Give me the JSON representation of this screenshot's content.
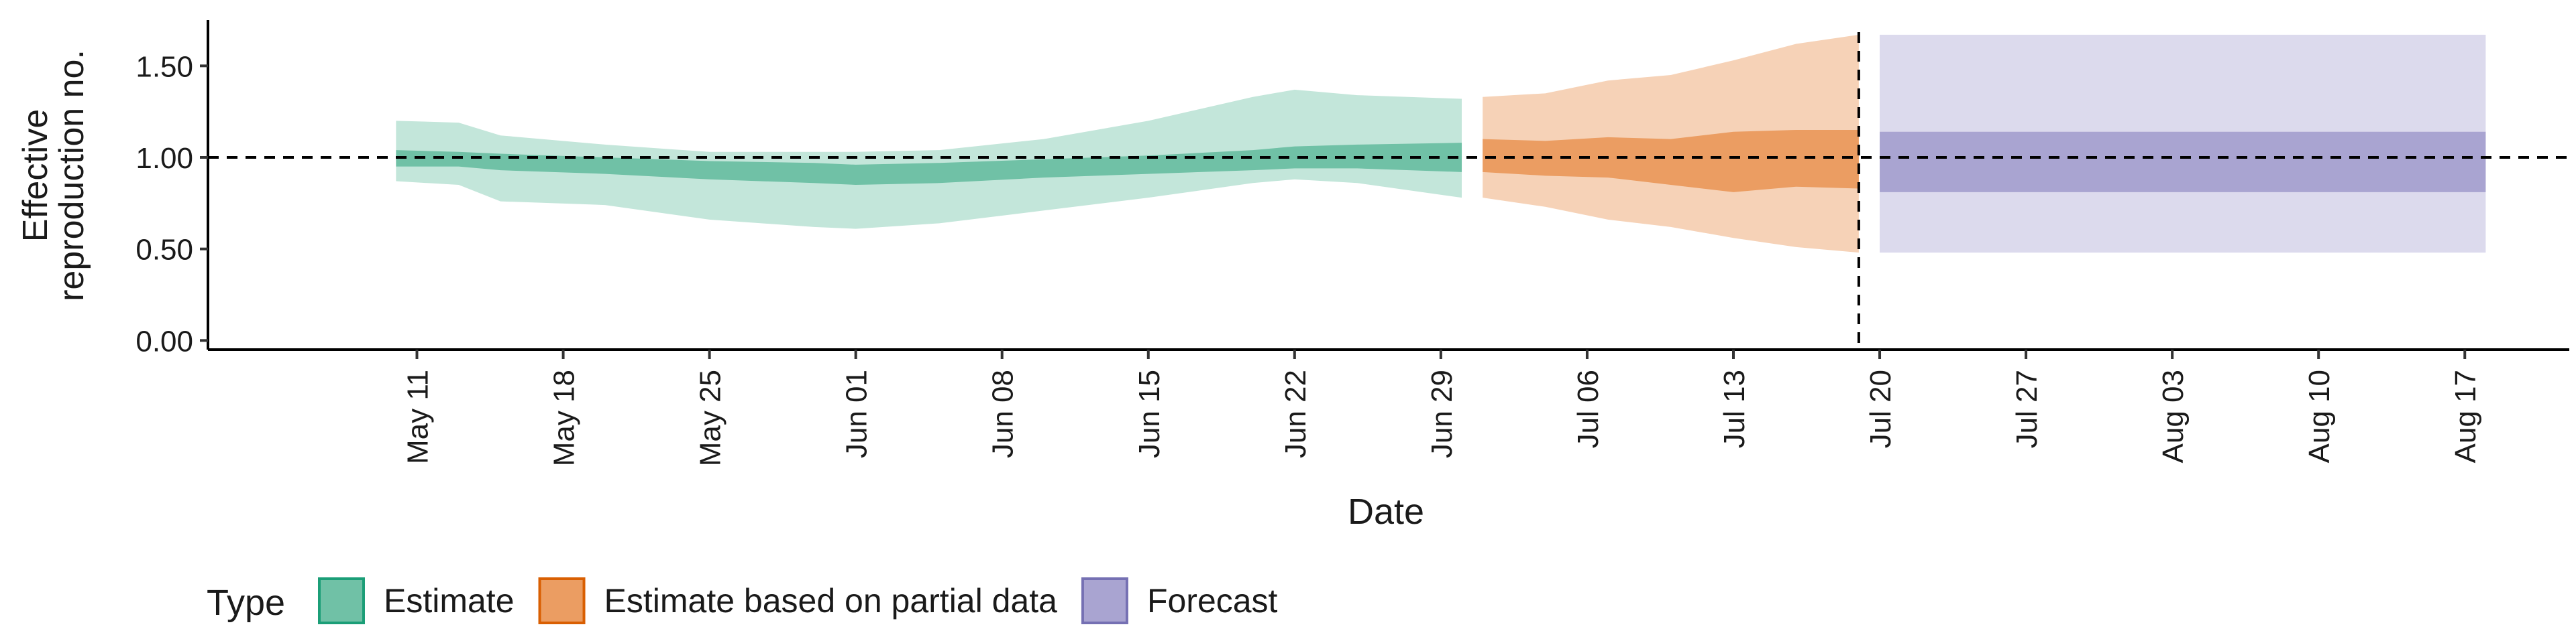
{
  "chart_data": {
    "type": "area",
    "title": "",
    "xlabel": "Date",
    "ylabel_lines": [
      "Effective",
      "reproduction no."
    ],
    "ylim": [
      -0.05,
      1.75
    ],
    "yticks": [
      0.0,
      0.5,
      1.0,
      1.5
    ],
    "ytick_labels": [
      "0.00",
      "0.50",
      "1.00",
      "1.50"
    ],
    "xlim": [
      "2020-05-01",
      "2020-08-22"
    ],
    "xticks": [
      "2020-05-11",
      "2020-05-18",
      "2020-05-25",
      "2020-06-01",
      "2020-06-08",
      "2020-06-15",
      "2020-06-22",
      "2020-06-29",
      "2020-07-06",
      "2020-07-13",
      "2020-07-20",
      "2020-07-27",
      "2020-08-03",
      "2020-08-10",
      "2020-08-17"
    ],
    "xtick_labels": [
      "May 11",
      "May 18",
      "May 25",
      "Jun 01",
      "Jun 08",
      "Jun 15",
      "Jun 22",
      "Jun 29",
      "Jul 06",
      "Jul 13",
      "Jul 20",
      "Jul 27",
      "Aug 03",
      "Aug 10",
      "Aug 17"
    ],
    "reference_line_y": 1.0,
    "vertical_line_x": "2020-07-19",
    "legend": {
      "title": "Type",
      "position": "bottom-left",
      "items": [
        {
          "label": "Estimate",
          "fill": "#70c1a6",
          "stroke": "#1b9e77"
        },
        {
          "label": "Estimate based on partial data",
          "fill": "#eb9d62",
          "stroke": "#d95f02"
        },
        {
          "label": "Forecast",
          "fill": "#a9a4d1",
          "stroke": "#7570b3"
        }
      ]
    },
    "series": [
      {
        "name": "Estimate",
        "color": "#1b9e77",
        "outer_color": "#c3e6da",
        "inner_color": "#70c1a6",
        "points": [
          {
            "x": "2020-05-10",
            "lo90": 0.87,
            "lo50": 0.95,
            "hi50": 1.04,
            "hi90": 1.2
          },
          {
            "x": "2020-05-13",
            "lo90": 0.85,
            "lo50": 0.95,
            "hi50": 1.03,
            "hi90": 1.19
          },
          {
            "x": "2020-05-15",
            "lo90": 0.76,
            "lo50": 0.93,
            "hi50": 1.02,
            "hi90": 1.12
          },
          {
            "x": "2020-05-20",
            "lo90": 0.74,
            "lo50": 0.91,
            "hi50": 1.0,
            "hi90": 1.07
          },
          {
            "x": "2020-05-25",
            "lo90": 0.66,
            "lo50": 0.88,
            "hi50": 0.98,
            "hi90": 1.03
          },
          {
            "x": "2020-05-30",
            "lo90": 0.62,
            "lo50": 0.86,
            "hi50": 0.97,
            "hi90": 1.03
          },
          {
            "x": "2020-06-01",
            "lo90": 0.61,
            "lo50": 0.85,
            "hi50": 0.96,
            "hi90": 1.03
          },
          {
            "x": "2020-06-05",
            "lo90": 0.64,
            "lo50": 0.86,
            "hi50": 0.97,
            "hi90": 1.04
          },
          {
            "x": "2020-06-10",
            "lo90": 0.71,
            "lo50": 0.89,
            "hi50": 0.99,
            "hi90": 1.1
          },
          {
            "x": "2020-06-15",
            "lo90": 0.78,
            "lo50": 0.91,
            "hi50": 1.01,
            "hi90": 1.2
          },
          {
            "x": "2020-06-20",
            "lo90": 0.86,
            "lo50": 0.93,
            "hi50": 1.04,
            "hi90": 1.33
          },
          {
            "x": "2020-06-22",
            "lo90": 0.88,
            "lo50": 0.94,
            "hi50": 1.06,
            "hi90": 1.37
          },
          {
            "x": "2020-06-25",
            "lo90": 0.86,
            "lo50": 0.94,
            "hi50": 1.07,
            "hi90": 1.34
          },
          {
            "x": "2020-06-30",
            "lo90": 0.78,
            "lo50": 0.92,
            "hi50": 1.08,
            "hi90": 1.32
          }
        ]
      },
      {
        "name": "Estimate based on partial data",
        "color": "#d95f02",
        "outer_color": "#f6d2b7",
        "inner_color": "#eb9d62",
        "points": [
          {
            "x": "2020-07-01",
            "lo90": 0.78,
            "lo50": 0.92,
            "hi50": 1.1,
            "hi90": 1.33
          },
          {
            "x": "2020-07-04",
            "lo90": 0.73,
            "lo50": 0.9,
            "hi50": 1.09,
            "hi90": 1.35
          },
          {
            "x": "2020-07-07",
            "lo90": 0.66,
            "lo50": 0.89,
            "hi50": 1.11,
            "hi90": 1.42
          },
          {
            "x": "2020-07-10",
            "lo90": 0.62,
            "lo50": 0.85,
            "hi50": 1.1,
            "hi90": 1.45
          },
          {
            "x": "2020-07-13",
            "lo90": 0.56,
            "lo50": 0.81,
            "hi50": 1.14,
            "hi90": 1.53
          },
          {
            "x": "2020-07-16",
            "lo90": 0.51,
            "lo50": 0.84,
            "hi50": 1.15,
            "hi90": 1.62
          },
          {
            "x": "2020-07-19",
            "lo90": 0.48,
            "lo50": 0.83,
            "hi50": 1.15,
            "hi90": 1.67
          }
        ]
      },
      {
        "name": "Forecast",
        "color": "#7570b3",
        "outer_color": "#dcdaed",
        "inner_color": "#a9a4d1",
        "points": [
          {
            "x": "2020-07-20",
            "lo90": 0.48,
            "lo50": 0.81,
            "hi50": 1.14,
            "hi90": 1.67
          },
          {
            "x": "2020-08-18",
            "lo90": 0.48,
            "lo50": 0.81,
            "hi50": 1.14,
            "hi90": 1.67
          }
        ]
      }
    ]
  }
}
